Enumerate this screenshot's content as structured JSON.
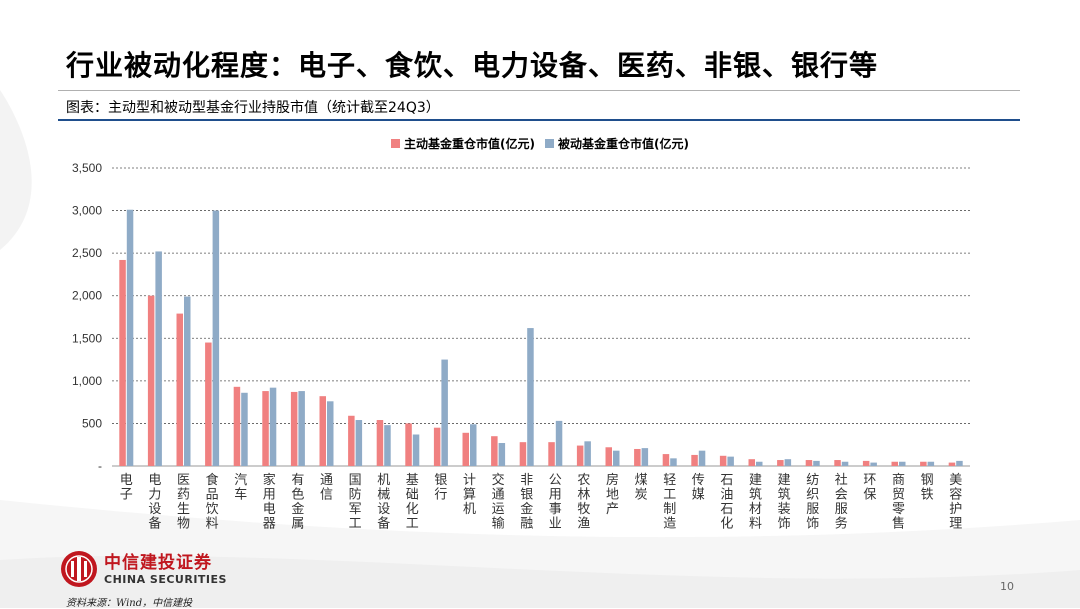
{
  "slide": {
    "title": "行业被动化程度：电子、食饮、电力设备、医药、非银、银行等",
    "subtitle": "图表：主动型和被动型基金行业持股市值（统计截至24Q3）",
    "source": "资料来源：Wind，中信建投",
    "page_number": "10",
    "logo_cn": "中信建投证券",
    "logo_en": "CHINA SECURITIES"
  },
  "colors": {
    "active": "#f08080",
    "passive": "#8fabc7",
    "title_rule": "#1f4e8c",
    "brand": "#c0171f"
  },
  "chart_data": {
    "type": "bar",
    "title": "",
    "legend_position": "top-center",
    "grid": true,
    "ylim": [
      0,
      3500
    ],
    "yticks": [
      "-",
      "500",
      "1,000",
      "1,500",
      "2,000",
      "2,500",
      "3,000",
      "3,500"
    ],
    "categories": [
      "电子",
      "电力设备",
      "医药生物",
      "食品饮料",
      "汽车",
      "家用电器",
      "有色金属",
      "通信",
      "国防军工",
      "机械设备",
      "基础化工",
      "银行",
      "计算机",
      "交通运输",
      "非银金融",
      "公用事业",
      "农林牧渔",
      "房地产",
      "煤炭",
      "轻工制造",
      "传媒",
      "石油石化",
      "建筑材料",
      "建筑装饰",
      "纺织服饰",
      "社会服务",
      "环保",
      "商贸零售",
      "钢铁",
      "美容护理"
    ],
    "series": [
      {
        "name": "主动基金重仓市值(亿元)",
        "values": [
          2420,
          2000,
          1790,
          1450,
          930,
          880,
          870,
          820,
          590,
          540,
          500,
          450,
          390,
          350,
          280,
          280,
          240,
          220,
          200,
          140,
          130,
          120,
          80,
          70,
          70,
          70,
          60,
          50,
          50,
          40
        ]
      },
      {
        "name": "被动基金重仓市值(亿元)",
        "values": [
          3010,
          2520,
          1990,
          3000,
          860,
          920,
          880,
          760,
          540,
          480,
          370,
          1250,
          490,
          270,
          1620,
          530,
          290,
          180,
          210,
          90,
          180,
          110,
          50,
          80,
          60,
          50,
          40,
          50,
          50,
          60
        ]
      }
    ]
  }
}
